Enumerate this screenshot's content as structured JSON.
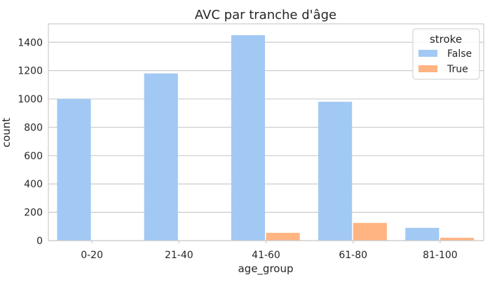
{
  "chart_data": {
    "type": "bar",
    "title": "AVC par tranche d'âge",
    "xlabel": "age_group",
    "ylabel": "count",
    "categories": [
      "0-20",
      "21-40",
      "41-60",
      "61-80",
      "81-100"
    ],
    "series": [
      {
        "name": "False",
        "color": "#a1c9f4",
        "values": [
          1000,
          1180,
          1450,
          980,
          90
        ]
      },
      {
        "name": "True",
        "color": "#ffb482",
        "values": [
          0,
          0,
          55,
          125,
          20
        ]
      }
    ],
    "ylim": [
      0,
      1530
    ],
    "yticks": [
      0,
      200,
      400,
      600,
      800,
      1000,
      1200,
      1400
    ],
    "grid": true,
    "legend": {
      "title": "stroke",
      "position": "top-right"
    }
  }
}
